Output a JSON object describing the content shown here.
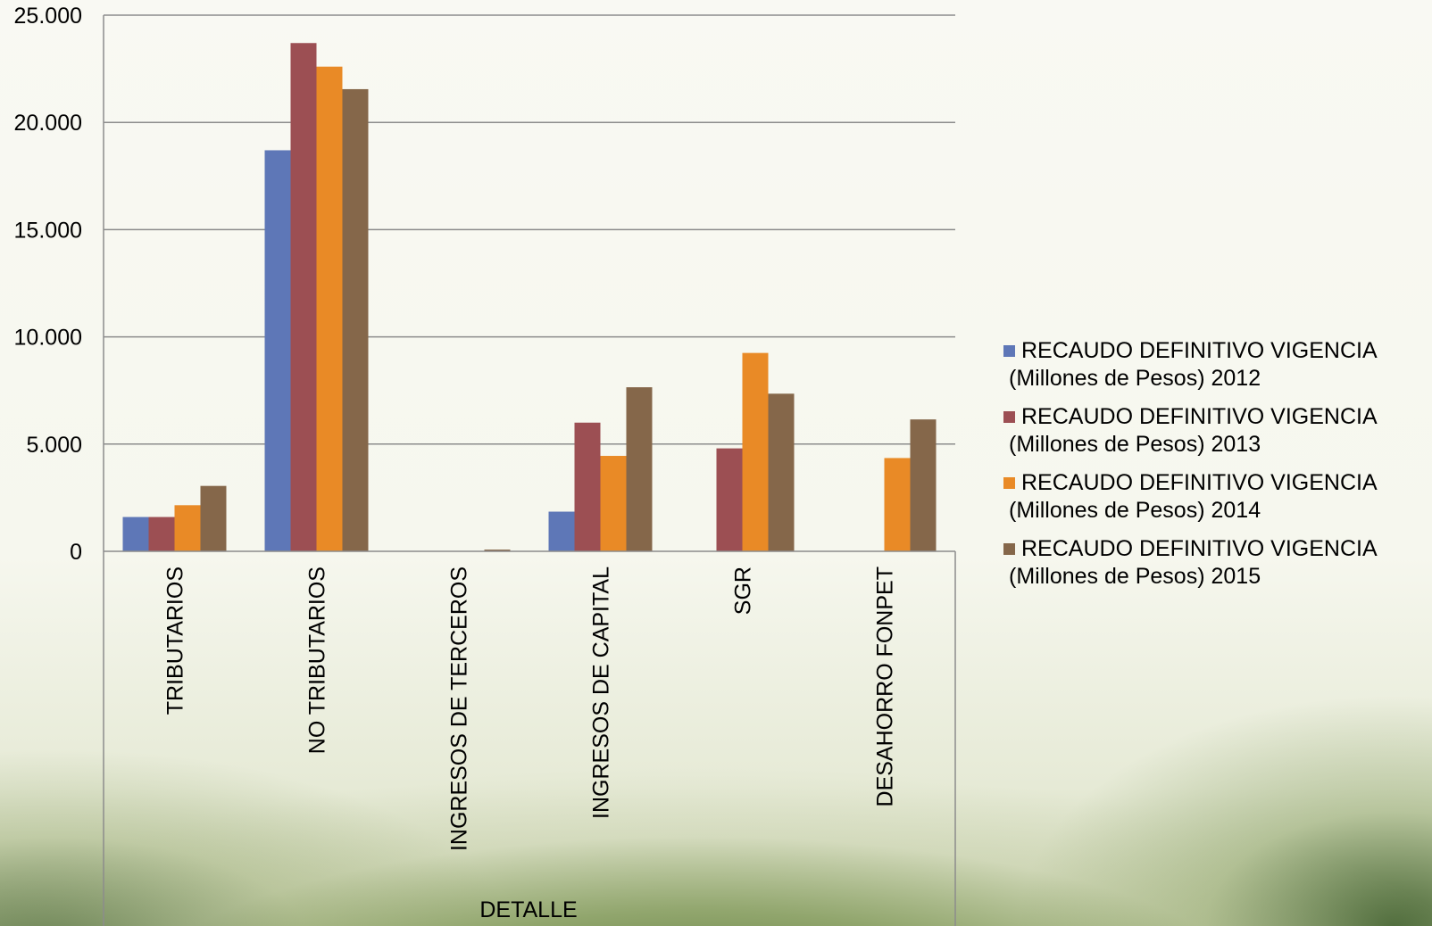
{
  "chart_data": {
    "type": "bar",
    "categories": [
      "TRIBUTARIOS",
      "NO TRIBUTARIOS",
      "INGRESOS DE TERCEROS",
      "INGRESOS DE CAPITAL",
      "SGR",
      "DESAHORRO FONPET"
    ],
    "xlabel": "DETALLE",
    "ylabel": "",
    "ylim": [
      0,
      25000
    ],
    "yticks": [
      "0",
      "5.000",
      "10.000",
      "15.000",
      "20.000",
      "25.000"
    ],
    "grid": true,
    "legend_position": "right",
    "series": [
      {
        "name": "RECAUDO DEFINITIVO VIGENCIA (Millones de Pesos) 2012",
        "name_line1": "RECAUDO DEFINITIVO VIGENCIA",
        "name_line2": "(Millones de Pesos) 2012",
        "color": "#5e77b7",
        "values": [
          1600,
          18700,
          0,
          1850,
          0,
          0
        ]
      },
      {
        "name": "RECAUDO DEFINITIVO VIGENCIA (Millones de Pesos) 2013",
        "name_line1": "RECAUDO DEFINITIVO VIGENCIA",
        "name_line2": "(Millones de Pesos) 2013",
        "color": "#9c4f53",
        "values": [
          1600,
          23700,
          0,
          6000,
          4800,
          0
        ]
      },
      {
        "name": "RECAUDO DEFINITIVO VIGENCIA (Millones de Pesos) 2014",
        "name_line1": "RECAUDO DEFINITIVO VIGENCIA",
        "name_line2": "(Millones de Pesos) 2014",
        "color": "#e98a26",
        "values": [
          2150,
          22600,
          0,
          4450,
          9250,
          4350
        ]
      },
      {
        "name": "RECAUDO DEFINITIVO VIGENCIA (Millones de Pesos) 2015",
        "name_line1": "RECAUDO DEFINITIVO VIGENCIA",
        "name_line2": "(Millones de Pesos) 2015",
        "color": "#85674a",
        "values": [
          3050,
          21550,
          80,
          7650,
          7350,
          6150
        ]
      }
    ]
  }
}
